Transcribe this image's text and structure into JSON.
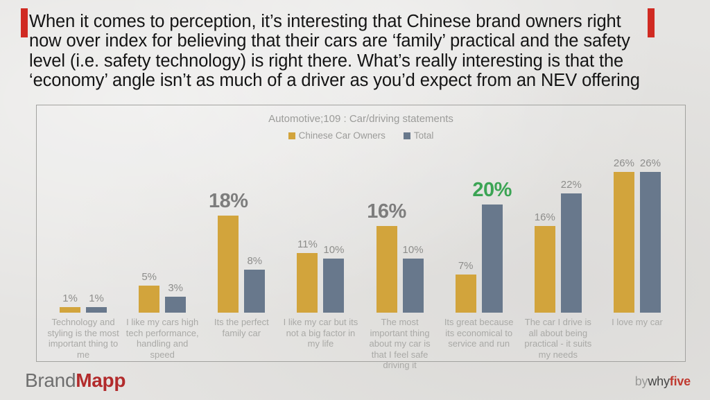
{
  "accent_color": "#d02a22",
  "headline": {
    "lines": [
      "When it comes to perception, it’s interesting that Chinese brand owners right",
      "now over index for believing that their cars are ‘family’ practical and the safety",
      "level (i.e. safety technology) is right there. What’s really interesting is that the",
      "‘economy’ angle isn’t as much of a driver as you’d expect from an NEV offering"
    ]
  },
  "chart_data": {
    "type": "bar",
    "title": "Automotive;109 : Car/driving statements",
    "legend_position": "top",
    "grid": false,
    "ylim": [
      0,
      28
    ],
    "value_suffix": "%",
    "categories": [
      "Technology and styling is the most important thing to me",
      "I like my cars high tech performance, handling and speed",
      "Its the perfect family car",
      "I like my car but its not a big factor in my life",
      "The most important thing about my car is that I feel safe driving it",
      "Its great because its economical to service and run",
      "The car I drive is all about being practical - it suits my needs",
      "I love my car"
    ],
    "series": [
      {
        "name": "Chinese Car Owners",
        "color": "#d2a43c",
        "values": [
          1,
          5,
          18,
          11,
          16,
          7,
          16,
          26
        ]
      },
      {
        "name": "Total",
        "color": "#68788c",
        "values": [
          1,
          3,
          8,
          10,
          10,
          20,
          22,
          26
        ]
      }
    ],
    "emphasis": [
      {
        "series": 0,
        "index": 2,
        "style": "big"
      },
      {
        "series": 0,
        "index": 4,
        "style": "big"
      },
      {
        "series": 1,
        "index": 5,
        "style": "big-green"
      }
    ],
    "highlight_color": "#3ba454",
    "big_label_color": "#7d7d7d"
  },
  "footer": {
    "logo": {
      "brand": "Brand",
      "mapp": "Mapp"
    },
    "byline": {
      "by": "by",
      "why": "why",
      "five": "five"
    }
  }
}
